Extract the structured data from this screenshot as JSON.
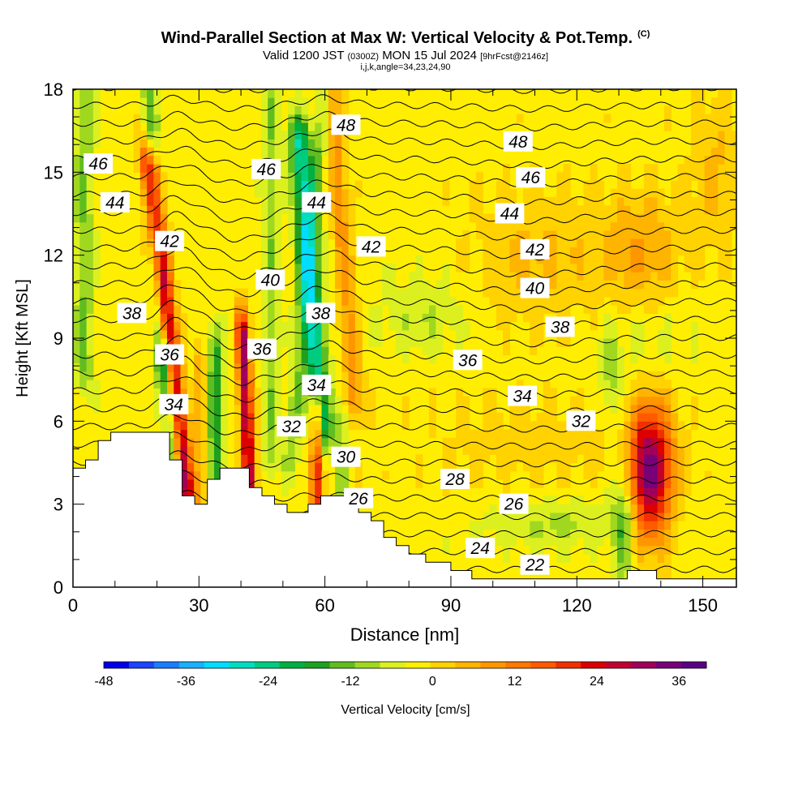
{
  "title": {
    "main": "Wind-Parallel Section at Max W: Vertical Velocity & Pot.Temp.",
    "copyright": "(C)",
    "valid_a": "Valid 1200 JST",
    "valid_zulu": "(0300Z)",
    "valid_b": "MON 15 Jul 2024",
    "forecast": "[9hrFcst@2146z]",
    "indices": "i,j,k,angle=34,23,24,90"
  },
  "chart_data": {
    "type": "heatmap",
    "xlabel": "Distance [nm]",
    "ylabel": "Height [Kft MSL]",
    "xlim": [
      0,
      158
    ],
    "ylim": [
      0,
      18
    ],
    "xticks": [
      0,
      30,
      60,
      90,
      120,
      150
    ],
    "yticks": [
      0,
      3,
      6,
      9,
      12,
      15,
      18
    ],
    "colorbar": {
      "label": "Vertical Velocity [cm/s]",
      "ticks": [
        -48,
        -36,
        -24,
        -12,
        0,
        12,
        24,
        36
      ],
      "range": [
        -48,
        40
      ],
      "step": 4,
      "colors": [
        "#0000e8",
        "#1a44ff",
        "#1a7cff",
        "#18b0ff",
        "#00ddff",
        "#00ddc0",
        "#00cc80",
        "#00b040",
        "#1ea020",
        "#60bd20",
        "#a0d820",
        "#dcf020",
        "#ffee00",
        "#ffd200",
        "#ffb400",
        "#ff9600",
        "#ff7800",
        "#ff5a00",
        "#f03000",
        "#dc0000",
        "#c00030",
        "#a0005a",
        "#780078",
        "#5a0082"
      ]
    },
    "contour_variable": "Potential Temperature (C)",
    "contour_levels": [
      22,
      24,
      26,
      28,
      30,
      32,
      34,
      36,
      38,
      40,
      42,
      44,
      46,
      48
    ],
    "contour_labels": [
      {
        "text": "46",
        "x": 6,
        "y": 15.3
      },
      {
        "text": "44",
        "x": 10,
        "y": 13.9
      },
      {
        "text": "42",
        "x": 23,
        "y": 12.5
      },
      {
        "text": "38",
        "x": 14,
        "y": 9.9
      },
      {
        "text": "36",
        "x": 23,
        "y": 8.4
      },
      {
        "text": "34",
        "x": 24,
        "y": 6.6
      },
      {
        "text": "46",
        "x": 46,
        "y": 15.1
      },
      {
        "text": "40",
        "x": 47,
        "y": 11.1
      },
      {
        "text": "36",
        "x": 45,
        "y": 8.6
      },
      {
        "text": "32",
        "x": 52,
        "y": 5.8
      },
      {
        "text": "48",
        "x": 65,
        "y": 16.7
      },
      {
        "text": "44",
        "x": 58,
        "y": 13.9
      },
      {
        "text": "38",
        "x": 59,
        "y": 9.9
      },
      {
        "text": "34",
        "x": 58,
        "y": 7.3
      },
      {
        "text": "42",
        "x": 71,
        "y": 12.3
      },
      {
        "text": "30",
        "x": 65,
        "y": 4.7
      },
      {
        "text": "26",
        "x": 68,
        "y": 3.2
      },
      {
        "text": "48",
        "x": 106,
        "y": 16.1
      },
      {
        "text": "46",
        "x": 109,
        "y": 14.8
      },
      {
        "text": "44",
        "x": 104,
        "y": 13.5
      },
      {
        "text": "42",
        "x": 110,
        "y": 12.2
      },
      {
        "text": "40",
        "x": 110,
        "y": 10.8
      },
      {
        "text": "38",
        "x": 116,
        "y": 9.4
      },
      {
        "text": "36",
        "x": 94,
        "y": 8.2
      },
      {
        "text": "34",
        "x": 107,
        "y": 6.9
      },
      {
        "text": "32",
        "x": 121,
        "y": 6.0
      },
      {
        "text": "28",
        "x": 91,
        "y": 3.9
      },
      {
        "text": "26",
        "x": 105,
        "y": 3.0
      },
      {
        "text": "24",
        "x": 97,
        "y": 1.4
      },
      {
        "text": "22",
        "x": 110,
        "y": 0.8
      }
    ],
    "max_updraft_cms": 40,
    "max_downdraft_cms": -40
  }
}
